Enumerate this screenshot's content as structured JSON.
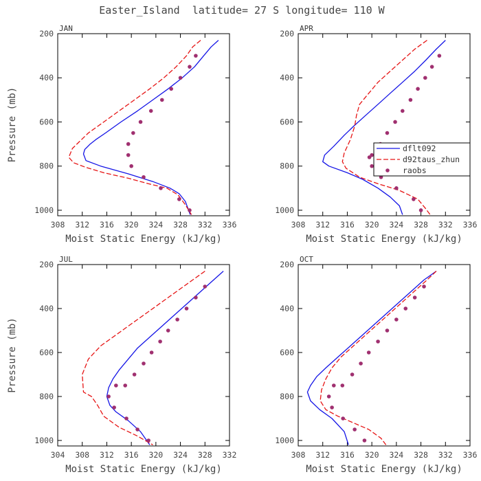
{
  "title": "Easter_Island  latitude= 27 S longitude= 110 W",
  "chart_data": [
    {
      "type": "line",
      "panel": "JAN",
      "xlabel": "Moist Static Energy (kJ/kg)",
      "ylabel": "Pressure (mb)",
      "xlim": [
        308,
        336
      ],
      "xticks": [
        308,
        312,
        316,
        320,
        324,
        328,
        332,
        336
      ],
      "ylim": [
        200,
        1025
      ],
      "yticks": [
        200,
        400,
        600,
        800,
        1000
      ],
      "y_inverted": true,
      "series": [
        {
          "name": "dflt092",
          "style": "solid",
          "color": "#1414e6",
          "x": [
            334.2,
            333.0,
            331.8,
            330.3,
            328.3,
            326.0,
            323.5,
            321.0,
            318.3,
            315.8,
            314.2,
            313.3,
            312.4,
            312.2,
            312.6,
            315.0,
            319.5,
            323.5,
            326.3,
            327.8,
            328.8,
            329.6
          ],
          "y": [
            230,
            260,
            300,
            350,
            400,
            450,
            500,
            550,
            600,
            650,
            680,
            700,
            725,
            745,
            775,
            800,
            835,
            870,
            900,
            925,
            960,
            1020
          ]
        },
        {
          "name": "d92taus_zhun",
          "style": "dashed",
          "color": "#e61414",
          "x": [
            331.3,
            330.0,
            329.0,
            327.3,
            325.3,
            323.0,
            320.5,
            318.0,
            315.5,
            313.0,
            311.5,
            310.4,
            309.8,
            310.6,
            312.5,
            315.5,
            319.5,
            322.8,
            325.8,
            327.6,
            328.8,
            329.8
          ],
          "y": [
            230,
            260,
            300,
            350,
            400,
            450,
            500,
            550,
            600,
            650,
            690,
            720,
            760,
            785,
            805,
            830,
            855,
            880,
            900,
            930,
            975,
            1020
          ]
        },
        {
          "name": "raobs",
          "style": "dots",
          "color": "#a03070",
          "x": [
            330.5,
            329.5,
            328.0,
            326.5,
            325.0,
            323.2,
            321.5,
            320.3,
            319.5,
            319.5,
            320.0,
            322.0,
            324.8,
            327.8,
            329.5
          ],
          "y": [
            300,
            350,
            400,
            450,
            500,
            550,
            600,
            650,
            700,
            750,
            800,
            850,
            900,
            950,
            1000
          ]
        }
      ]
    },
    {
      "type": "line",
      "panel": "APR",
      "xlabel": "Moist Static Energy (kJ/kg)",
      "ylabel": "",
      "xlim": [
        308,
        336
      ],
      "xticks": [
        308,
        312,
        316,
        320,
        324,
        328,
        332,
        336
      ],
      "ylim": [
        200,
        1025
      ],
      "yticks": [
        200,
        400,
        600,
        800,
        1000
      ],
      "y_inverted": true,
      "legend": [
        "dflt092",
        "d92taus_zhun",
        "raobs"
      ],
      "series": [
        {
          "name": "dflt092",
          "style": "solid",
          "color": "#1414e6",
          "x": [
            332.0,
            330.5,
            328.8,
            327.0,
            325.0,
            323.0,
            321.0,
            319.0,
            317.0,
            315.5,
            313.8,
            312.3,
            312.0,
            313.0,
            316.0,
            318.5,
            321.0,
            323.0,
            324.5,
            325.0
          ],
          "y": [
            230,
            270,
            320,
            370,
            420,
            470,
            520,
            570,
            620,
            660,
            710,
            750,
            780,
            800,
            830,
            860,
            900,
            940,
            980,
            1020
          ]
        },
        {
          "name": "d92taus_zhun",
          "style": "dashed",
          "color": "#e61414",
          "x": [
            329.0,
            327.0,
            325.0,
            323.0,
            321.0,
            319.5,
            318.0,
            317.5,
            317.2,
            316.5,
            315.5,
            315.2,
            315.8,
            318.0,
            321.0,
            324.5,
            327.5,
            328.7,
            329.5
          ],
          "y": [
            230,
            270,
            320,
            370,
            420,
            470,
            520,
            570,
            620,
            680,
            740,
            780,
            810,
            850,
            880,
            910,
            950,
            990,
            1020
          ]
        },
        {
          "name": "raobs",
          "style": "dots",
          "color": "#a03070",
          "x": [
            331.0,
            329.8,
            328.7,
            327.5,
            326.3,
            325.0,
            323.8,
            322.5,
            321.4,
            320.7,
            320.0,
            319.6,
            320.0,
            321.5,
            324.0,
            326.8,
            328.0
          ],
          "y": [
            300,
            350,
            400,
            450,
            500,
            550,
            600,
            650,
            700,
            725,
            750,
            760,
            800,
            850,
            900,
            950,
            1000
          ]
        }
      ]
    },
    {
      "type": "line",
      "panel": "JUL",
      "xlabel": "Moist Static Energy (kJ/kg)",
      "ylabel": "Pressure (mb)",
      "xlim": [
        304,
        332
      ],
      "xticks": [
        304,
        308,
        312,
        316,
        320,
        324,
        328,
        332
      ],
      "ylim": [
        200,
        1025
      ],
      "yticks": [
        200,
        400,
        600,
        800,
        1000
      ],
      "y_inverted": true,
      "series": [
        {
          "name": "dflt092",
          "style": "solid",
          "color": "#1414e6",
          "x": [
            331.0,
            329.0,
            327.0,
            325.0,
            323.0,
            321.0,
            319.0,
            317.0,
            315.5,
            314.0,
            313.0,
            312.3,
            312.0,
            312.5,
            313.5,
            315.5,
            317.5,
            319.0
          ],
          "y": [
            230,
            280,
            330,
            380,
            430,
            480,
            530,
            580,
            630,
            680,
            720,
            760,
            800,
            840,
            870,
            910,
            960,
            1020
          ]
        },
        {
          "name": "d92taus_zhun",
          "style": "dashed",
          "color": "#e61414",
          "x": [
            328.0,
            326.0,
            323.5,
            321.0,
            318.5,
            316.0,
            313.5,
            311.0,
            309.0,
            308.0,
            308.2,
            309.5,
            310.5,
            311.5,
            314.0,
            317.0,
            319.5
          ],
          "y": [
            230,
            270,
            320,
            370,
            420,
            470,
            520,
            570,
            630,
            700,
            780,
            800,
            840,
            890,
            940,
            980,
            1020
          ]
        },
        {
          "name": "raobs",
          "style": "dots",
          "color": "#a03070",
          "x": [
            328.0,
            326.5,
            325.0,
            323.5,
            322.0,
            320.7,
            319.3,
            318.0,
            316.5,
            315.0,
            313.5,
            312.3,
            313.2,
            315.2,
            317.0,
            318.8
          ],
          "y": [
            300,
            350,
            400,
            450,
            500,
            550,
            600,
            650,
            700,
            750,
            750,
            800,
            850,
            900,
            950,
            1000
          ]
        }
      ]
    },
    {
      "type": "line",
      "panel": "OCT",
      "xlabel": "Moist Static Energy (kJ/kg)",
      "ylabel": "",
      "xlim": [
        308,
        336
      ],
      "xticks": [
        308,
        312,
        316,
        320,
        324,
        328,
        332,
        336
      ],
      "ylim": [
        200,
        1025
      ],
      "yticks": [
        200,
        400,
        600,
        800,
        1000
      ],
      "y_inverted": true,
      "series": [
        {
          "name": "dflt092",
          "style": "solid",
          "color": "#1414e6",
          "x": [
            330.5,
            328.5,
            326.5,
            324.5,
            322.5,
            320.5,
            318.5,
            316.5,
            314.5,
            312.5,
            311.0,
            310.0,
            309.5,
            310.0,
            311.5,
            313.5,
            315.5,
            316.2
          ],
          "y": [
            230,
            270,
            320,
            370,
            420,
            470,
            520,
            570,
            620,
            670,
            710,
            750,
            780,
            820,
            860,
            900,
            960,
            1020
          ]
        },
        {
          "name": "d92taus_zhun",
          "style": "dashed",
          "color": "#e61414",
          "x": [
            330.5,
            329.0,
            327.0,
            325.0,
            323.0,
            321.0,
            319.0,
            317.0,
            315.0,
            313.5,
            312.5,
            311.8,
            311.6,
            312.5,
            314.5,
            317.0,
            319.5,
            321.5,
            322.3
          ],
          "y": [
            230,
            270,
            320,
            370,
            420,
            470,
            520,
            570,
            620,
            670,
            720,
            770,
            820,
            860,
            890,
            920,
            950,
            990,
            1020
          ]
        },
        {
          "name": "raobs",
          "style": "dots",
          "color": "#a03070",
          "x": [
            328.5,
            327.0,
            325.5,
            324.0,
            322.5,
            321.0,
            319.5,
            318.2,
            316.8,
            315.2,
            313.8,
            313.0,
            313.5,
            315.3,
            317.2,
            318.8
          ],
          "y": [
            300,
            350,
            400,
            450,
            500,
            550,
            600,
            650,
            700,
            750,
            750,
            800,
            850,
            900,
            950,
            1000
          ]
        }
      ]
    }
  ]
}
